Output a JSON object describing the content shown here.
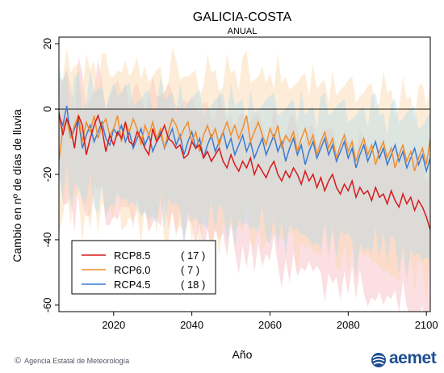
{
  "page": {
    "credit": "Agencia Estatal de Meteorología",
    "logo_text": "aemet",
    "logo_icon": "aemet-logo-icon"
  },
  "chart_data": {
    "type": "line",
    "title": "GALICIA-COSTA",
    "subtitle": "ANUAL",
    "xlabel": "Año",
    "ylabel": "Cambio en nº de días de lluvia",
    "xlim": [
      2006,
      2101
    ],
    "ylim": [
      -62,
      22
    ],
    "xticks": [
      2020,
      2040,
      2060,
      2080,
      2100
    ],
    "yticks": [
      20,
      0,
      -20,
      -40,
      -60
    ],
    "grid": false,
    "legend_position": "bottom-left",
    "reference_line": 0,
    "x_start": 2006,
    "series": [
      {
        "name": "RCP8.5",
        "count": "( 17 )",
        "color": "#d7191c",
        "band_color": "#f7b7c0",
        "values": [
          -1,
          -8,
          -3,
          -6,
          -12,
          -2,
          -5,
          -14,
          -9,
          -5,
          -2,
          -6,
          -13,
          -8,
          -11,
          -7,
          -9,
          -4,
          -10,
          -11,
          -7,
          -9,
          -12,
          -14,
          -6,
          -10,
          -8,
          -5,
          -9,
          -10,
          -12,
          -11,
          -15,
          -14,
          -10,
          -12,
          -11,
          -15,
          -13,
          -16,
          -14,
          -12,
          -16,
          -18,
          -14,
          -17,
          -19,
          -16,
          -18,
          -15,
          -20,
          -17,
          -19,
          -21,
          -18,
          -16,
          -20,
          -22,
          -19,
          -21,
          -18,
          -20,
          -23,
          -19,
          -22,
          -20,
          -24,
          -21,
          -25,
          -22,
          -20,
          -24,
          -26,
          -23,
          -25,
          -22,
          -27,
          -24,
          -26,
          -25,
          -28,
          -24,
          -27,
          -26,
          -29,
          -25,
          -28,
          -30,
          -26,
          -29,
          -27,
          -31,
          -28,
          -30,
          -33,
          -37
        ]
      },
      {
        "name": "RCP6.0",
        "count": "( 7 )",
        "color": "#f28e2b",
        "band_color": "#fbd7a8",
        "values": [
          -16,
          -6,
          -3,
          -9,
          -5,
          -2,
          -10,
          -4,
          -7,
          -2,
          -9,
          -5,
          -3,
          -8,
          -6,
          -2,
          -10,
          -4,
          -7,
          -3,
          -6,
          -11,
          -5,
          -8,
          -4,
          -9,
          -6,
          -12,
          -7,
          -3,
          -5,
          -9,
          -6,
          -4,
          -10,
          -7,
          -13,
          -8,
          -5,
          -9,
          -6,
          -11,
          -7,
          -4,
          -8,
          -5,
          -9,
          -6,
          -2,
          -10,
          -7,
          -4,
          -8,
          -11,
          -6,
          -9,
          -5,
          -12,
          -8,
          -10,
          -7,
          -13,
          -9,
          -6,
          -11,
          -8,
          -14,
          -10,
          -7,
          -12,
          -9,
          -15,
          -11,
          -8,
          -13,
          -10,
          -16,
          -12,
          -9,
          -14,
          -11,
          -17,
          -13,
          -10,
          -15,
          -12,
          -18,
          -14,
          -11,
          -16,
          -13,
          -19,
          -15,
          -12,
          -17,
          -9
        ]
      },
      {
        "name": "RCP4.5",
        "count": "( 18 )",
        "color": "#3a7bd5",
        "band_color": "#b5dceb",
        "values": [
          -2,
          -5,
          1,
          -9,
          -6,
          -3,
          -12,
          -8,
          -5,
          -10,
          -7,
          -4,
          -9,
          -11,
          -6,
          -8,
          -5,
          -10,
          -7,
          -12,
          -9,
          -6,
          -11,
          -8,
          -13,
          -10,
          -7,
          -12,
          -9,
          -6,
          -11,
          -8,
          -14,
          -10,
          -7,
          -12,
          -9,
          -15,
          -11,
          -8,
          -13,
          -10,
          -7,
          -12,
          -9,
          -14,
          -11,
          -8,
          -13,
          -10,
          -15,
          -12,
          -9,
          -14,
          -11,
          -8,
          -13,
          -10,
          -16,
          -12,
          -9,
          -14,
          -11,
          -17,
          -13,
          -10,
          -15,
          -12,
          -9,
          -14,
          -11,
          -16,
          -13,
          -10,
          -15,
          -12,
          -18,
          -14,
          -11,
          -16,
          -13,
          -10,
          -15,
          -12,
          -17,
          -14,
          -11,
          -16,
          -13,
          -18,
          -15,
          -12,
          -17,
          -14,
          -19,
          -15
        ]
      }
    ]
  }
}
